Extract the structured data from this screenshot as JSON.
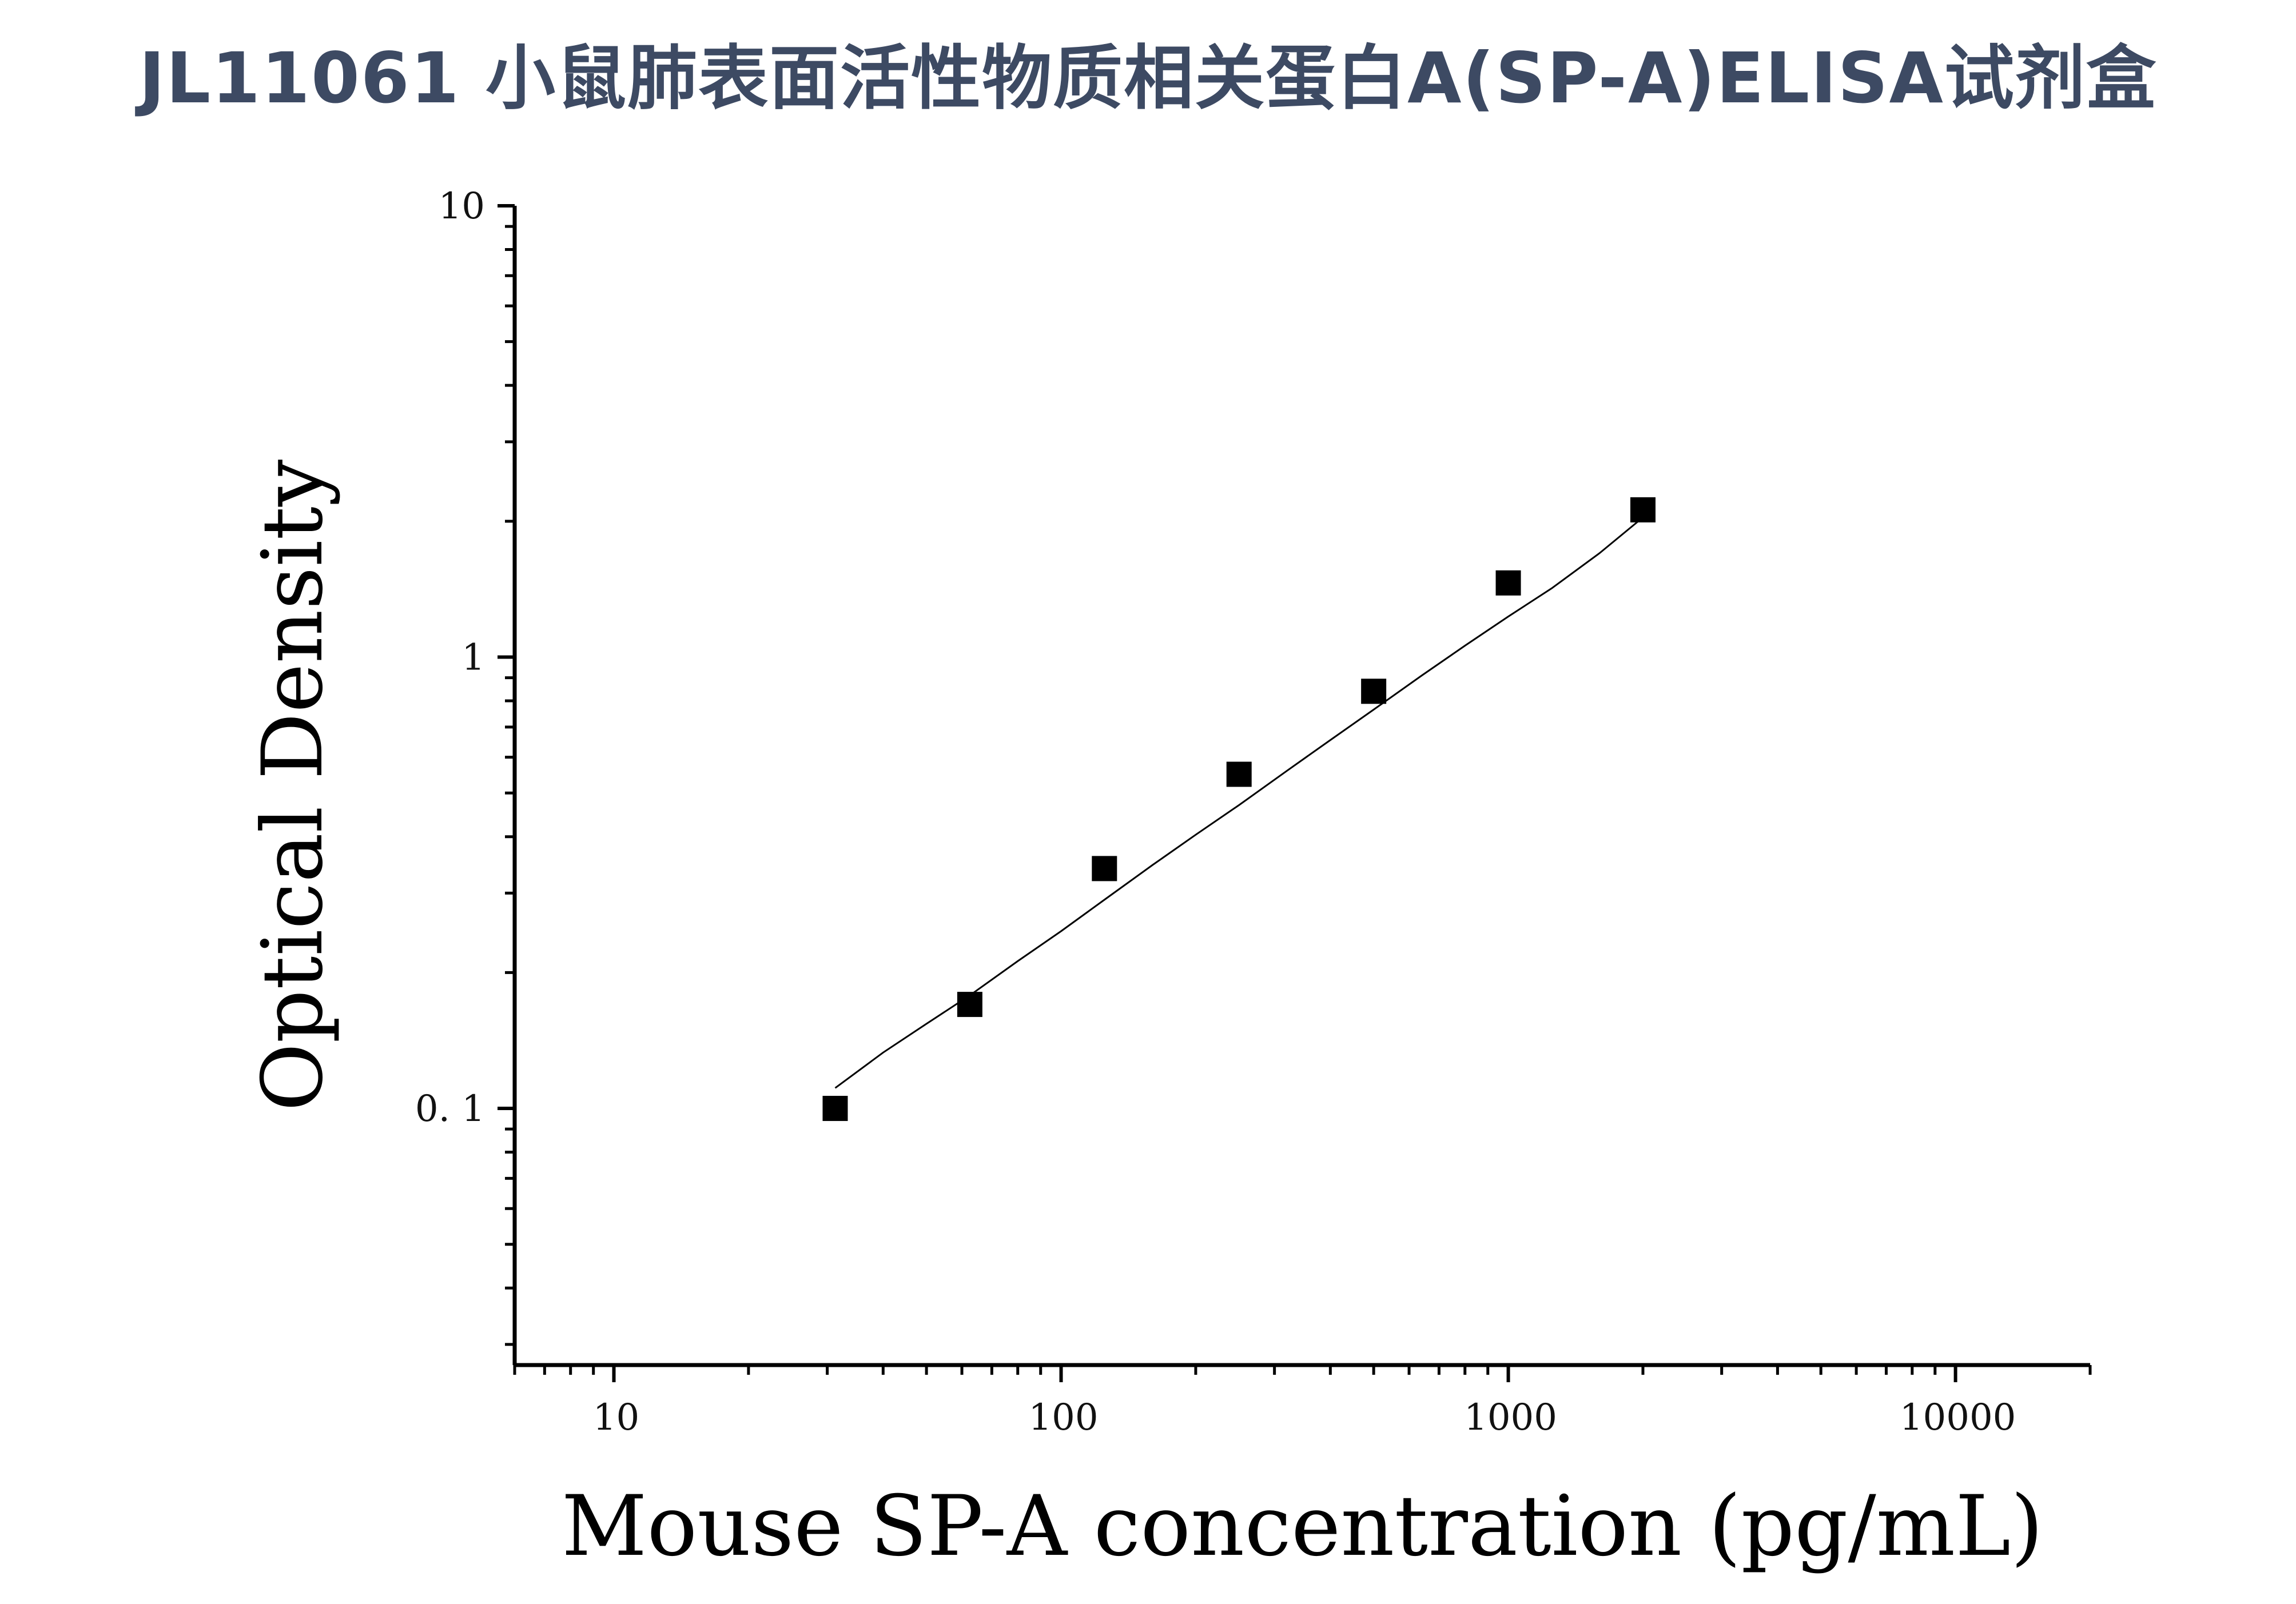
{
  "page": {
    "title": "JL11061 小鼠肺表面活性物质相关蛋白A(SP-A)ELISA试剂盒"
  },
  "chart_data": {
    "type": "scatter",
    "title": "",
    "xlabel": "Mouse SP-A concentration (pg/mL)",
    "ylabel": "Optical Density",
    "xscale": "log",
    "yscale": "log",
    "xlim": [
      6,
      20000
    ],
    "ylim": [
      0.027,
      10
    ],
    "x_ticks": [
      10,
      100,
      1000,
      10000
    ],
    "x_tick_labels": [
      "10",
      "100",
      "1000",
      "10000"
    ],
    "y_ticks": [
      0.1,
      1,
      10
    ],
    "y_tick_labels": [
      "0. 1",
      "1",
      "10"
    ],
    "grid": false,
    "legend": "none",
    "series": [
      {
        "marker": "square",
        "x": [
          31.25,
          62.5,
          125,
          250,
          500,
          1000,
          2000
        ],
        "y": [
          0.1,
          0.17,
          0.34,
          0.55,
          0.84,
          1.46,
          2.12
        ]
      }
    ],
    "fit_curve": {
      "type": "line",
      "x": [
        31.25,
        40,
        50,
        62.5,
        80,
        100,
        125,
        160,
        200,
        250,
        320,
        400,
        500,
        640,
        800,
        1000,
        1250,
        1600,
        2000
      ],
      "y": [
        0.111,
        0.133,
        0.154,
        0.178,
        0.212,
        0.247,
        0.29,
        0.346,
        0.404,
        0.47,
        0.56,
        0.655,
        0.765,
        0.91,
        1.06,
        1.23,
        1.42,
        1.7,
        2.04
      ]
    },
    "colors": {
      "marker": "#000000",
      "line": "#000000",
      "axis": "#000000"
    }
  }
}
